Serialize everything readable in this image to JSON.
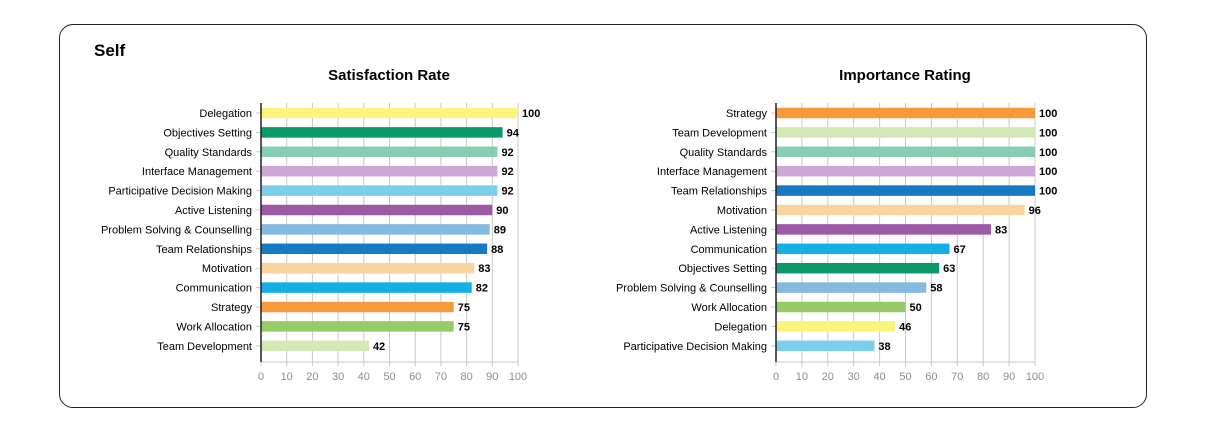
{
  "panel": {
    "title": "Self"
  },
  "colors": {
    "yellow": "#fbf47a",
    "green": "#0a9a69",
    "mint": "#87cdb0",
    "lavender": "#cba8d5",
    "sky": "#7ccfec",
    "purple": "#9c59a4",
    "steel": "#86b9e0",
    "blue": "#1679c1",
    "peach": "#fbd39e",
    "cyan": "#16aee6",
    "orange": "#f79a3a",
    "lime": "#96cb65",
    "pale": "#d3e8b5",
    "grid": "#c8c8c8",
    "axis": "#222222"
  },
  "chart_data": [
    {
      "type": "bar",
      "orientation": "horizontal",
      "title": "Satisfaction Rate",
      "xlim": [
        0,
        100
      ],
      "xticks": [
        0,
        10,
        20,
        30,
        40,
        50,
        60,
        70,
        80,
        90,
        100
      ],
      "grid": true,
      "categories": [
        "Delegation",
        "Objectives Setting",
        "Quality Standards",
        "Interface Management",
        "Participative Decision Making",
        "Active Listening",
        "Problem Solving & Counselling",
        "Team Relationships",
        "Motivation",
        "Communication",
        "Strategy",
        "Work Allocation",
        "Team Development"
      ],
      "values": [
        100,
        94,
        92,
        92,
        92,
        90,
        89,
        88,
        83,
        82,
        75,
        75,
        42
      ],
      "bar_colors": [
        "#fbf47a",
        "#0a9a69",
        "#87cdb0",
        "#cba8d5",
        "#7ccfec",
        "#9c59a4",
        "#86b9e0",
        "#1679c1",
        "#fbd39e",
        "#16aee6",
        "#f79a3a",
        "#96cb65",
        "#d3e8b5"
      ]
    },
    {
      "type": "bar",
      "orientation": "horizontal",
      "title": "Importance Rating",
      "xlim": [
        0,
        100
      ],
      "xticks": [
        0,
        10,
        20,
        30,
        40,
        50,
        60,
        70,
        80,
        90,
        100
      ],
      "grid": true,
      "categories": [
        "Strategy",
        "Team Development",
        "Quality Standards",
        "Interface Management",
        "Team Relationships",
        "Motivation",
        "Active Listening",
        "Communication",
        "Objectives Setting",
        "Problem Solving & Counselling",
        "Work Allocation",
        "Delegation",
        "Participative Decision Making"
      ],
      "values": [
        100,
        100,
        100,
        100,
        100,
        96,
        83,
        67,
        63,
        58,
        50,
        46,
        38
      ],
      "bar_colors": [
        "#f79a3a",
        "#d3e8b5",
        "#87cdb0",
        "#cba8d5",
        "#1679c1",
        "#fbd39e",
        "#9c59a4",
        "#16aee6",
        "#0a9a69",
        "#86b9e0",
        "#96cb65",
        "#fbf47a",
        "#7ccfec"
      ]
    }
  ]
}
